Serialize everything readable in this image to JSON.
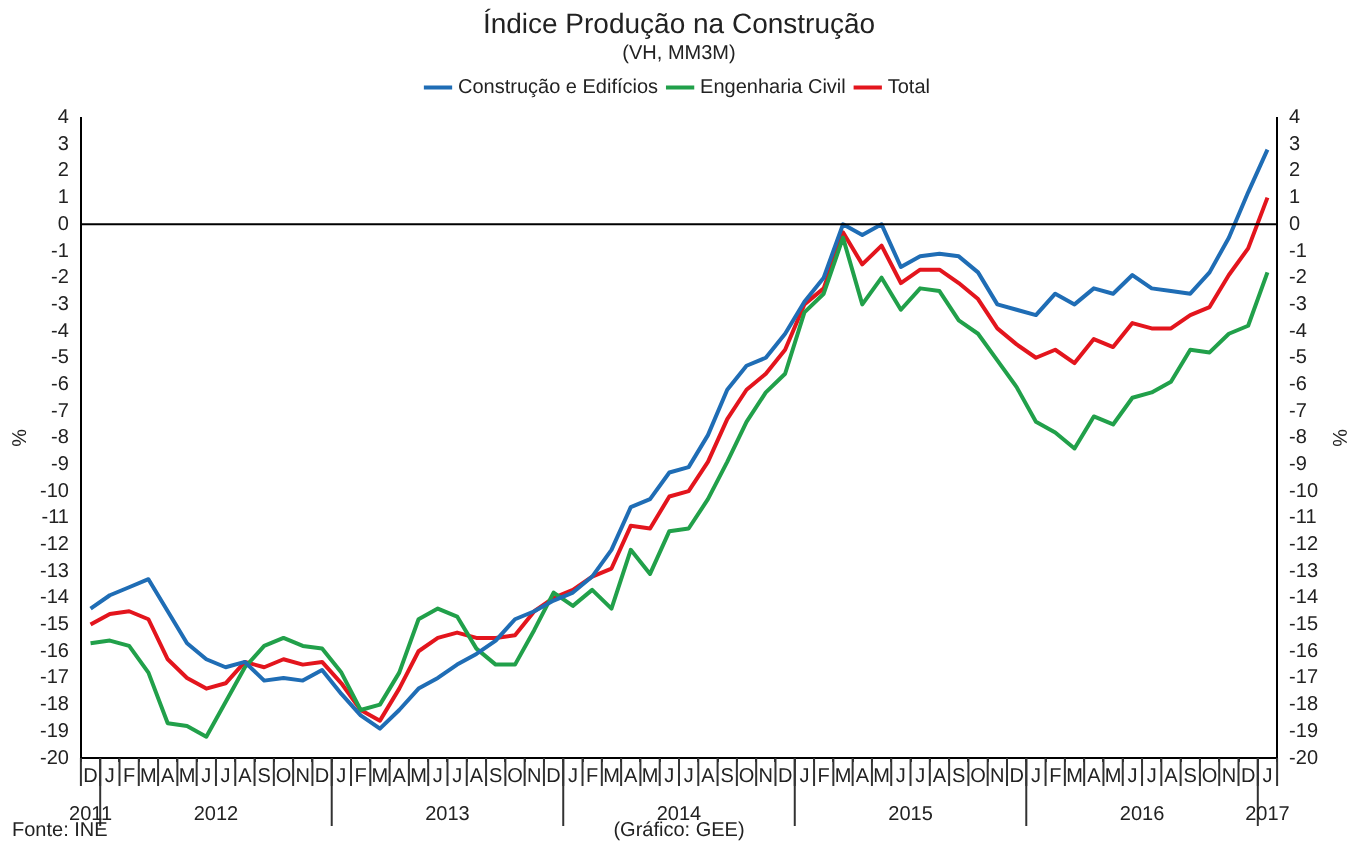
{
  "chart_data": {
    "type": "line",
    "title": "Índice Produção na Construção",
    "subtitle": "(VH, MM3M)",
    "ylabel": "%",
    "y2label": "%",
    "categories": [
      "D",
      "J",
      "F",
      "M",
      "A",
      "M",
      "J",
      "J",
      "A",
      "S",
      "O",
      "N",
      "D",
      "J",
      "F",
      "M",
      "A",
      "M",
      "J",
      "J",
      "A",
      "S",
      "O",
      "N",
      "D",
      "J",
      "F",
      "M",
      "A",
      "M",
      "J",
      "J",
      "A",
      "S",
      "O",
      "N",
      "D",
      "J",
      "F",
      "M",
      "A",
      "M",
      "J",
      "J",
      "A",
      "S",
      "O",
      "N",
      "D",
      "J",
      "F",
      "M",
      "A",
      "M",
      "J",
      "J",
      "A",
      "S",
      "O",
      "N",
      "D",
      "J"
    ],
    "series": [
      {
        "name": "Construção e Edifícios",
        "color": "#1f6db5",
        "values": [
          -14.4,
          -13.9,
          -13.6,
          -13.3,
          -14.5,
          -15.7,
          -16.3,
          -16.6,
          -16.4,
          -17.1,
          -17.0,
          -17.1,
          -16.7,
          -17.6,
          -18.4,
          -18.9,
          -18.2,
          -17.4,
          -17.0,
          -16.5,
          -16.1,
          -15.6,
          -14.8,
          -14.5,
          -14.1,
          -13.8,
          -13.2,
          -12.2,
          -10.6,
          -10.3,
          -9.3,
          -9.1,
          -7.9,
          -6.2,
          -5.3,
          -5.0,
          -4.1,
          -2.9,
          -2.0,
          0,
          -0.4,
          0,
          -1.6,
          -1.2,
          -1.1,
          -1.2,
          -1.8,
          -3.0,
          -3.2,
          -3.4,
          -2.6,
          -3.0,
          -2.4,
          -2.6,
          -1.9,
          -2.4,
          -2.5,
          -2.6,
          -1.8,
          -0.5,
          1.2,
          2.8
        ]
      },
      {
        "name": "Engenharia Civil",
        "color": "#21a04a",
        "values": [
          -15.7,
          -15.6,
          -15.8,
          -16.8,
          -18.7,
          -18.8,
          -19.2,
          -17.9,
          -16.6,
          -15.8,
          -15.5,
          -15.8,
          -15.9,
          -16.8,
          -18.2,
          -18.0,
          -16.8,
          -14.8,
          -14.4,
          -14.7,
          -15.9,
          -16.5,
          -16.5,
          -15.2,
          -13.8,
          -14.3,
          -13.7,
          -14.4,
          -12.2,
          -13.1,
          -11.5,
          -11.4,
          -10.3,
          -8.9,
          -7.4,
          -6.3,
          -5.6,
          -3.3,
          -2.6,
          -0.5,
          -3.0,
          -2.0,
          -3.2,
          -2.4,
          -2.5,
          -3.6,
          -4.1,
          -5.1,
          -6.1,
          -7.4,
          -7.8,
          -8.4,
          -7.2,
          -7.5,
          -6.5,
          -6.3,
          -5.9,
          -4.7,
          -4.8,
          -4.1,
          -3.8,
          -1.8
        ]
      },
      {
        "name": "Total",
        "color": "#e3151d",
        "values": [
          -15.0,
          -14.6,
          -14.5,
          -14.8,
          -16.3,
          -17.0,
          -17.4,
          -17.2,
          -16.4,
          -16.6,
          -16.3,
          -16.5,
          -16.4,
          -17.2,
          -18.2,
          -18.6,
          -17.4,
          -16.0,
          -15.5,
          -15.3,
          -15.5,
          -15.5,
          -15.4,
          -14.5,
          -14.0,
          -13.7,
          -13.2,
          -12.9,
          -11.3,
          -11.4,
          -10.2,
          -10.0,
          -8.9,
          -7.3,
          -6.2,
          -5.6,
          -4.7,
          -3.0,
          -2.4,
          -0.3,
          -1.5,
          -0.8,
          -2.2,
          -1.7,
          -1.7,
          -2.2,
          -2.8,
          -3.9,
          -4.5,
          -5.0,
          -4.7,
          -5.2,
          -4.3,
          -4.6,
          -3.7,
          -3.9,
          -3.9,
          -3.4,
          -3.1,
          -1.9,
          -0.9,
          1.0
        ]
      }
    ],
    "ylim": [
      -20,
      4
    ],
    "yticks": [
      -20,
      -19,
      -18,
      -17,
      -16,
      -15,
      -14,
      -13,
      -12,
      -11,
      -10,
      -9,
      -8,
      -7,
      -6,
      -5,
      -4,
      -3,
      -2,
      -1,
      0,
      1,
      2,
      3,
      4
    ],
    "y2lim": [
      -20,
      4
    ],
    "y2ticks": [
      -20,
      -19,
      -18,
      -17,
      -16,
      -15,
      -14,
      -13,
      -12,
      -11,
      -10,
      -9,
      -8,
      -7,
      -6,
      -5,
      -4,
      -3,
      -2,
      -1,
      0,
      1,
      2,
      3,
      4
    ],
    "ref_lines": [
      {
        "axis": "y",
        "value": 0,
        "color": "#000000"
      }
    ],
    "annotations": [
      "2011",
      "2012",
      "2013",
      "2014",
      "2015",
      "2016",
      "2017",
      "Fonte: INE",
      "(Gráfico: GEE)"
    ],
    "grid": false,
    "legend": "top",
    "marker": "none",
    "line_style": "solid"
  }
}
